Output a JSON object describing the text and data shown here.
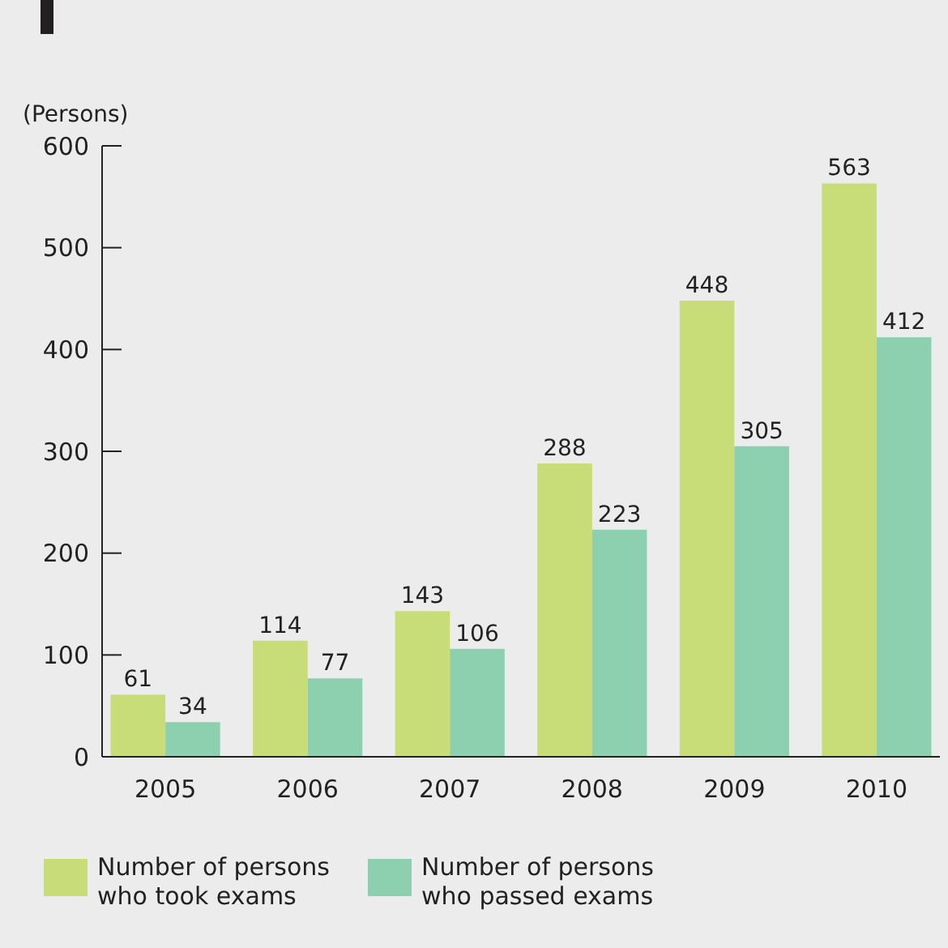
{
  "chart_data": {
    "type": "bar",
    "ylabel": "(Persons)",
    "categories": [
      "2005",
      "2006",
      "2007",
      "2008",
      "2009",
      "2010"
    ],
    "series": [
      {
        "name": "Number of persons\nwho took exams",
        "color": "#c8dc78",
        "values": [
          61,
          114,
          143,
          288,
          448,
          563
        ]
      },
      {
        "name": "Number of persons\nwho passed exams",
        "color": "#8dd0b0",
        "values": [
          34,
          77,
          106,
          223,
          305,
          412
        ]
      }
    ],
    "ylim": [
      0,
      600
    ],
    "yticks": [
      0,
      100,
      200,
      300,
      400,
      500,
      600
    ],
    "data_labels": true,
    "legend": "bottom left",
    "grid": false
  }
}
